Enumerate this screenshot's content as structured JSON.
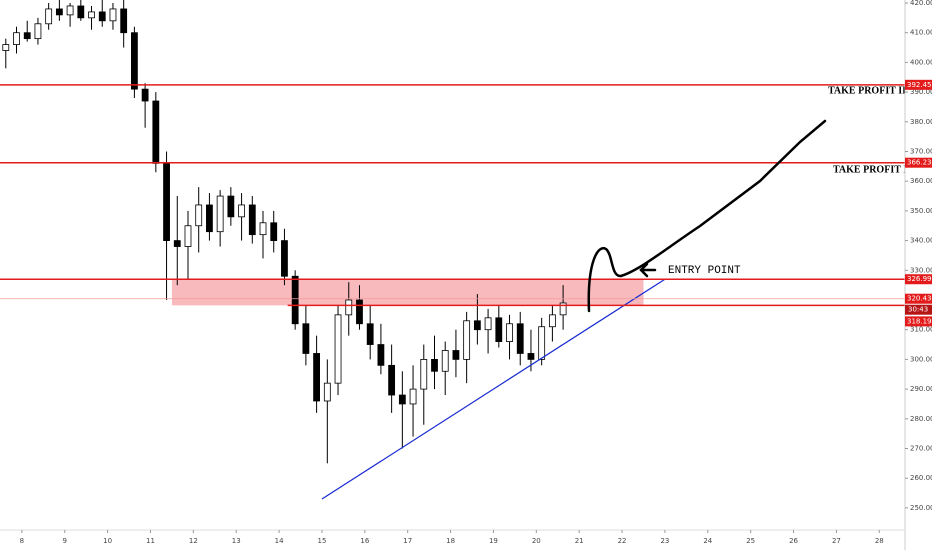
{
  "chart_data": {
    "type": "candlestick",
    "x": [
      7.625,
      7.875,
      8.125,
      8.375,
      8.625,
      8.875,
      9.125,
      9.375,
      9.625,
      9.875,
      10.125,
      10.375,
      10.625,
      10.875,
      11.125,
      11.375,
      11.625,
      11.875,
      12.125,
      12.375,
      12.625,
      12.875,
      13.125,
      13.375,
      13.625,
      13.875,
      14.125,
      14.375,
      14.625,
      14.875,
      15.125,
      15.375,
      15.625,
      15.875,
      16.125,
      16.375,
      16.625,
      16.875,
      17.125,
      17.375,
      17.625,
      17.875,
      18.125,
      18.375,
      18.625,
      18.875,
      19.125,
      19.375,
      19.625,
      19.875,
      20.125,
      20.375,
      20.625
    ],
    "open": [
      404,
      406,
      410,
      408,
      413,
      418,
      416,
      419,
      415,
      417,
      414,
      418,
      410,
      391,
      387,
      366,
      340,
      338,
      345,
      352,
      343,
      355,
      348,
      352,
      342,
      346,
      340,
      328,
      312,
      302,
      286,
      292,
      315,
      320,
      312,
      305,
      298,
      288,
      285,
      290,
      300,
      296,
      303,
      300,
      313,
      310,
      314,
      306,
      312,
      302,
      300,
      311,
      315
    ],
    "high": [
      408,
      412,
      414,
      415,
      420,
      421,
      420,
      422,
      419,
      421,
      420,
      421,
      412,
      393,
      390,
      370,
      355,
      350,
      358,
      356,
      357,
      358,
      356,
      355,
      350,
      350,
      344,
      330,
      318,
      308,
      300,
      318,
      326,
      325,
      318,
      312,
      305,
      296,
      298,
      305,
      308,
      306,
      310,
      316,
      322,
      317,
      318,
      315,
      316,
      310,
      314,
      318,
      325
    ],
    "low": [
      398,
      403,
      407,
      406,
      411,
      414,
      412,
      414,
      411,
      412,
      411,
      405,
      388,
      378,
      363,
      320,
      325,
      327,
      336,
      340,
      338,
      345,
      340,
      339,
      334,
      336,
      325,
      310,
      298,
      282,
      265,
      288,
      308,
      310,
      300,
      295,
      282,
      270,
      274,
      278,
      290,
      288,
      294,
      292,
      305,
      302,
      304,
      300,
      298,
      296,
      298,
      306,
      310
    ],
    "close": [
      406,
      410,
      408,
      413,
      418,
      416,
      419,
      415,
      417,
      414,
      418,
      410,
      391,
      387,
      366,
      340,
      338,
      345,
      352,
      343,
      355,
      348,
      352,
      342,
      346,
      340,
      328,
      312,
      302,
      286,
      292,
      315,
      320,
      312,
      305,
      298,
      288,
      285,
      290,
      300,
      296,
      303,
      300,
      313,
      310,
      314,
      306,
      312,
      302,
      300,
      311,
      315,
      319
    ],
    "xlim": [
      7.49,
      28.6
    ],
    "ylim": [
      242.56,
      421.01
    ],
    "xticks": [
      8,
      9,
      10,
      11,
      12,
      13,
      14,
      15,
      16,
      17,
      18,
      19,
      20,
      21,
      22,
      23,
      24,
      25,
      26,
      27,
      28
    ],
    "yticks": [
      {
        "value": 250,
        "label": "250.00"
      },
      {
        "value": 260,
        "label": "260.00"
      },
      {
        "value": 270,
        "label": "270.00"
      },
      {
        "value": 280,
        "label": "280.00"
      },
      {
        "value": 290,
        "label": "290.00"
      },
      {
        "value": 300,
        "label": "300.00"
      },
      {
        "value": 310,
        "label": "310.00"
      },
      {
        "value": 320,
        "label": "320.00"
      },
      {
        "value": 330,
        "label": "330.00"
      },
      {
        "value": 340,
        "label": "340.00"
      },
      {
        "value": 350,
        "label": "350.00"
      },
      {
        "value": 360,
        "label": "360.00"
      },
      {
        "value": 370,
        "label": "370.00"
      },
      {
        "value": 380,
        "label": "380.00"
      },
      {
        "value": 390,
        "label": "390.00"
      },
      {
        "value": 400,
        "label": "400.00"
      },
      {
        "value": 410,
        "label": "410.00"
      },
      {
        "value": 420,
        "label": "420.00"
      }
    ],
    "levels": [
      392.45,
      366.23,
      326.99
    ],
    "support": {
      "value": 318.19,
      "x0": 14.2
    },
    "price_line": {
      "value": 320.43,
      "countdown": "30:43"
    },
    "zone_x": [
      11.5,
      22.5
    ],
    "trendline": {
      "x": [
        15,
        23
      ],
      "y": [
        253,
        327
      ],
      "color": "#1a2bd1"
    },
    "annotations": {
      "take_profit_2": "TAKE PROFIT II",
      "take_profit_1": "TAKE PROFIT I",
      "entry": "ENTRY POINT"
    }
  }
}
